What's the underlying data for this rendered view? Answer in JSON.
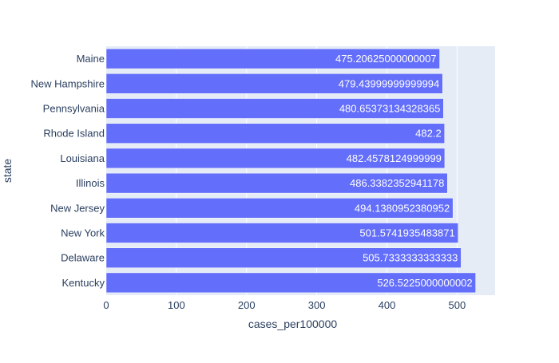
{
  "chart_data": {
    "type": "bar",
    "orientation": "horizontal",
    "categories": [
      "Maine",
      "New Hampshire",
      "Pennsylvania",
      "Rhode Island",
      "Louisiana",
      "Illinois",
      "New Jersey",
      "New York",
      "Delaware",
      "Kentucky"
    ],
    "values": [
      475.20625000000007,
      479.43999999999994,
      480.65373134328365,
      482.2,
      482.4578124999999,
      486.3382352941178,
      494.1380952380952,
      501.5741935483871,
      505.7333333333333,
      526.5225000000002
    ],
    "value_labels": [
      "475.20625000000007",
      "479.43999999999994",
      "480.65373134328365",
      "482.2",
      "482.4578124999999",
      "486.3382352941178",
      "494.1380952380952",
      "501.5741935483871",
      "505.7333333333333",
      "526.5225000000002"
    ],
    "xlabel": "cases_per100000",
    "ylabel": "state",
    "xlim": [
      0,
      554.2342
    ],
    "xticks": [
      0,
      100,
      200,
      300,
      400,
      500
    ],
    "xtick_labels": [
      "0",
      "100",
      "200",
      "300",
      "400",
      "500"
    ],
    "grid": true,
    "colors": {
      "bar": "#636efa",
      "plot_bg": "#e5ecf6",
      "grid": "#ffffff",
      "text": "#2a3f5f",
      "label_inside": "#ffffff"
    }
  }
}
